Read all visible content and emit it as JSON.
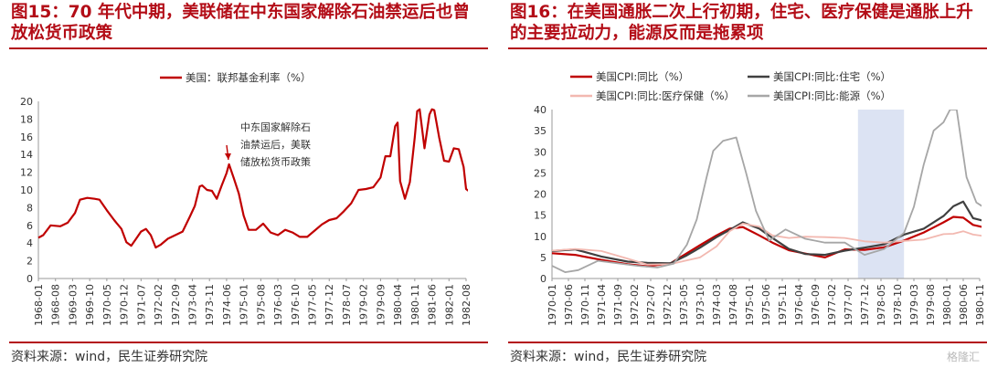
{
  "left": {
    "title": "图15：70 年代中期，美联储在中东国家解除石油禁运后也曾放松货币政策",
    "source": "资料来源：wind，民生证券研究院",
    "annotation": [
      "中东国家解除石",
      "油禁运后，美联",
      "储放松货币政策"
    ]
  },
  "right": {
    "title": "图16：在美国通胀二次上行初期，住宅、医疗保健是通胀上升的主要拉动力，能源反而是拖累项",
    "source": "资料来源：wind，民生证券研究院"
  },
  "watermark": "格隆汇",
  "colors": {
    "title": "#b30d17",
    "red": "#c00000",
    "dark": "#404040",
    "pink": "#f2b8b0",
    "gray": "#a6a6a6",
    "shade": "#dce3f3"
  },
  "chart_data": [
    {
      "type": "line",
      "title": "",
      "ylim": [
        0,
        20
      ],
      "yticks": [
        0,
        2,
        4,
        6,
        8,
        10,
        12,
        14,
        16,
        18,
        20
      ],
      "grid": false,
      "legend": "top-left",
      "x_tick_labels": [
        "1968-01",
        "1968-08",
        "1969-03",
        "1969-10",
        "1970-05",
        "1970-12",
        "1971-07",
        "1972-02",
        "1972-09",
        "1973-04",
        "1973-11",
        "1974-06",
        "1975-01",
        "1975-08",
        "1976-03",
        "1976-10",
        "1977-05",
        "1977-12",
        "1978-07",
        "1979-02",
        "1979-09",
        "1980-04",
        "1980-11",
        "1981-06",
        "1982-01",
        "1982-08"
      ],
      "series": [
        {
          "name": "美国：联邦基金利率（%）",
          "color": "#c00000",
          "x": [
            "1968-01",
            "1968-03",
            "1968-06",
            "1968-10",
            "1969-01",
            "1969-04",
            "1969-06",
            "1969-09",
            "1969-12",
            "1970-02",
            "1970-05",
            "1970-08",
            "1970-11",
            "1971-01",
            "1971-03",
            "1971-05",
            "1971-07",
            "1971-09",
            "1971-11",
            "1972-01",
            "1972-03",
            "1972-06",
            "1972-09",
            "1972-12",
            "1973-03",
            "1973-05",
            "1973-07",
            "1973-08",
            "1973-10",
            "1973-12",
            "1974-02",
            "1974-04",
            "1974-06",
            "1974-07",
            "1974-09",
            "1974-11",
            "1975-01",
            "1975-03",
            "1975-06",
            "1975-09",
            "1975-12",
            "1976-03",
            "1976-06",
            "1976-09",
            "1976-12",
            "1977-03",
            "1977-06",
            "1977-09",
            "1977-12",
            "1978-03",
            "1978-06",
            "1978-09",
            "1978-12",
            "1979-03",
            "1979-06",
            "1979-09",
            "1979-11",
            "1980-01",
            "1980-03",
            "1980-04",
            "1980-05",
            "1980-07",
            "1980-09",
            "1980-11",
            "1980-12",
            "1981-01",
            "1981-03",
            "1981-05",
            "1981-06",
            "1981-07",
            "1981-09",
            "1981-11",
            "1982-01",
            "1982-03",
            "1982-05",
            "1982-07",
            "1982-08",
            "1982-10",
            "1982-12"
          ],
          "values": [
            4.6,
            4.9,
            6.0,
            5.9,
            6.3,
            7.4,
            8.9,
            9.1,
            9.0,
            8.9,
            7.7,
            6.6,
            5.6,
            4.1,
            3.7,
            4.5,
            5.3,
            5.6,
            4.9,
            3.5,
            3.8,
            4.5,
            4.9,
            5.3,
            7.0,
            8.2,
            10.4,
            10.5,
            10.0,
            9.9,
            9.0,
            10.5,
            11.9,
            12.9,
            11.3,
            9.6,
            7.1,
            5.5,
            5.5,
            6.2,
            5.2,
            4.9,
            5.5,
            5.2,
            4.7,
            4.7,
            5.4,
            6.1,
            6.6,
            6.8,
            7.6,
            8.5,
            10.0,
            10.1,
            10.3,
            11.4,
            13.8,
            13.8,
            17.2,
            17.6,
            11.0,
            9.0,
            10.9,
            15.9,
            18.9,
            19.1,
            14.7,
            18.5,
            19.1,
            19.0,
            15.9,
            13.3,
            13.2,
            14.7,
            14.6,
            12.6,
            10.1,
            9.7,
            8.9
          ]
        }
      ]
    },
    {
      "type": "line",
      "title": "",
      "ylim": [
        0,
        40
      ],
      "yticks": [
        0,
        5,
        10,
        15,
        20,
        25,
        30,
        35,
        40
      ],
      "grid": false,
      "legend": "top",
      "shaded_period": [
        "1977-10",
        "1978-12"
      ],
      "x_tick_labels": [
        "1970-01",
        "1970-06",
        "1970-11",
        "1971-04",
        "1971-09",
        "1972-02",
        "1972-07",
        "1972-12",
        "1973-05",
        "1973-10",
        "1974-03",
        "1974-08",
        "1975-01",
        "1975-06",
        "1975-11",
        "1976-04",
        "1976-09",
        "1977-02",
        "1977-07",
        "1977-12",
        "1978-05",
        "1978-10",
        "1979-03",
        "1979-08",
        "1980-01",
        "1980-06",
        "1980-11"
      ],
      "series": [
        {
          "name": "美国CPI:同比（%）",
          "color": "#c00000",
          "x": [
            "1970-01",
            "1970-08",
            "1971-04",
            "1971-12",
            "1972-06",
            "1973-01",
            "1973-06",
            "1973-10",
            "1974-03",
            "1974-07",
            "1974-11",
            "1975-04",
            "1975-08",
            "1976-01",
            "1976-06",
            "1976-12",
            "1977-06",
            "1977-12",
            "1978-06",
            "1978-12",
            "1979-06",
            "1979-12",
            "1980-03",
            "1980-06",
            "1980-09",
            "1981-01"
          ],
          "values": [
            6.0,
            5.6,
            4.4,
            3.4,
            2.9,
            3.6,
            6.0,
            7.9,
            10.2,
            11.8,
            12.2,
            10.2,
            8.5,
            6.7,
            5.9,
            5.0,
            6.9,
            6.8,
            7.4,
            9.0,
            10.9,
            13.3,
            14.6,
            14.4,
            12.7,
            12.0
          ]
        },
        {
          "name": "美国CPI:同比:住宅（%）",
          "color": "#404040",
          "x": [
            "1970-01",
            "1970-08",
            "1971-04",
            "1971-12",
            "1972-06",
            "1973-01",
            "1973-06",
            "1973-10",
            "1974-03",
            "1974-07",
            "1974-11",
            "1975-04",
            "1975-08",
            "1976-01",
            "1976-06",
            "1976-12",
            "1977-06",
            "1977-12",
            "1978-06",
            "1978-12",
            "1979-06",
            "1979-12",
            "1980-03",
            "1980-06",
            "1980-09",
            "1981-01"
          ],
          "values": [
            6.5,
            6.9,
            5.2,
            4.0,
            3.7,
            3.6,
            5.5,
            7.3,
            9.8,
            11.5,
            13.3,
            11.8,
            9.6,
            7.0,
            5.8,
            5.6,
            6.6,
            7.3,
            8.1,
            10.4,
            11.8,
            14.8,
            17.1,
            18.2,
            14.3,
            13.5
          ]
        },
        {
          "name": "美国CPI:同比:医疗保健（%）",
          "color": "#f2b8b0",
          "x": [
            "1970-01",
            "1970-08",
            "1971-04",
            "1971-12",
            "1972-06",
            "1973-01",
            "1973-06",
            "1973-10",
            "1974-03",
            "1974-07",
            "1974-11",
            "1975-04",
            "1975-08",
            "1976-01",
            "1976-06",
            "1976-12",
            "1977-06",
            "1977-12",
            "1978-06",
            "1978-12",
            "1979-06",
            "1979-12",
            "1980-03",
            "1980-06",
            "1980-09",
            "1981-01"
          ],
          "values": [
            6.6,
            7.0,
            6.5,
            4.7,
            3.3,
            3.4,
            4.3,
            5.0,
            7.6,
            11.2,
            13.0,
            12.3,
            10.2,
            9.6,
            9.9,
            9.8,
            9.6,
            8.8,
            8.5,
            8.9,
            9.2,
            10.5,
            10.6,
            11.2,
            10.4,
            10.0
          ]
        },
        {
          "name": "美国CPI:同比:能源（%）",
          "color": "#a6a6a6",
          "x": [
            "1970-01",
            "1970-05",
            "1970-09",
            "1971-03",
            "1971-09",
            "1972-03",
            "1972-09",
            "1973-02",
            "1973-06",
            "1973-09",
            "1973-12",
            "1974-02",
            "1974-05",
            "1974-09",
            "1974-12",
            "1975-03",
            "1975-07",
            "1975-12",
            "1976-06",
            "1976-12",
            "1977-06",
            "1977-12",
            "1978-06",
            "1978-12",
            "1979-03",
            "1979-06",
            "1979-09",
            "1979-12",
            "1980-02",
            "1980-04",
            "1980-07",
            "1980-10",
            "1981-01"
          ],
          "values": [
            3.0,
            1.5,
            2.0,
            4.2,
            3.6,
            3.0,
            2.6,
            3.5,
            8.0,
            14.0,
            24.0,
            30.2,
            32.6,
            33.4,
            25.0,
            16.0,
            9.0,
            11.6,
            9.4,
            8.5,
            8.5,
            5.6,
            7.0,
            10.8,
            17.0,
            27.0,
            35.0,
            37.0,
            40.0,
            40.0,
            24.0,
            18.0,
            16.5
          ]
        }
      ]
    }
  ]
}
